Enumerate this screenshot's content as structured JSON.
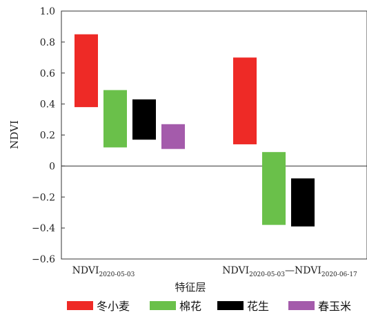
{
  "chart_data": {
    "type": "bar",
    "xlabel": "特征层",
    "ylabel": "NDVI",
    "ylim": [
      -0.6,
      1.0
    ],
    "yticks": [
      "1.0",
      "0.8",
      "0.6",
      "0.4",
      "0.2",
      "0",
      "−0.2",
      "−0.4",
      "−0.6"
    ],
    "ytick_values": [
      1.0,
      0.8,
      0.6,
      0.4,
      0.2,
      0,
      -0.2,
      -0.4,
      -0.6
    ],
    "categories": [
      {
        "main": "NDVI",
        "sub": "2020-05-03",
        "main2": "",
        "sub2": ""
      },
      {
        "main": "NDVI",
        "sub": "2020-05-03",
        "main2": "—NDVI",
        "sub2": "2020-06-17"
      }
    ],
    "series": [
      {
        "name": "冬小麦",
        "color": "#ee2a26",
        "ranges": [
          [
            0.38,
            0.85
          ],
          [
            0.14,
            0.7
          ]
        ]
      },
      {
        "name": "棉花",
        "color": "#6ac04a",
        "ranges": [
          [
            0.12,
            0.49
          ],
          [
            -0.38,
            0.09
          ]
        ]
      },
      {
        "name": "花生",
        "color": "#000000",
        "ranges": [
          [
            0.17,
            0.43
          ],
          [
            -0.39,
            -0.08
          ]
        ]
      },
      {
        "name": "春玉米",
        "color": "#a45bab",
        "ranges": [
          [
            0.11,
            0.27
          ],
          null
        ]
      }
    ],
    "zero_line": true,
    "legend_position": "bottom"
  }
}
